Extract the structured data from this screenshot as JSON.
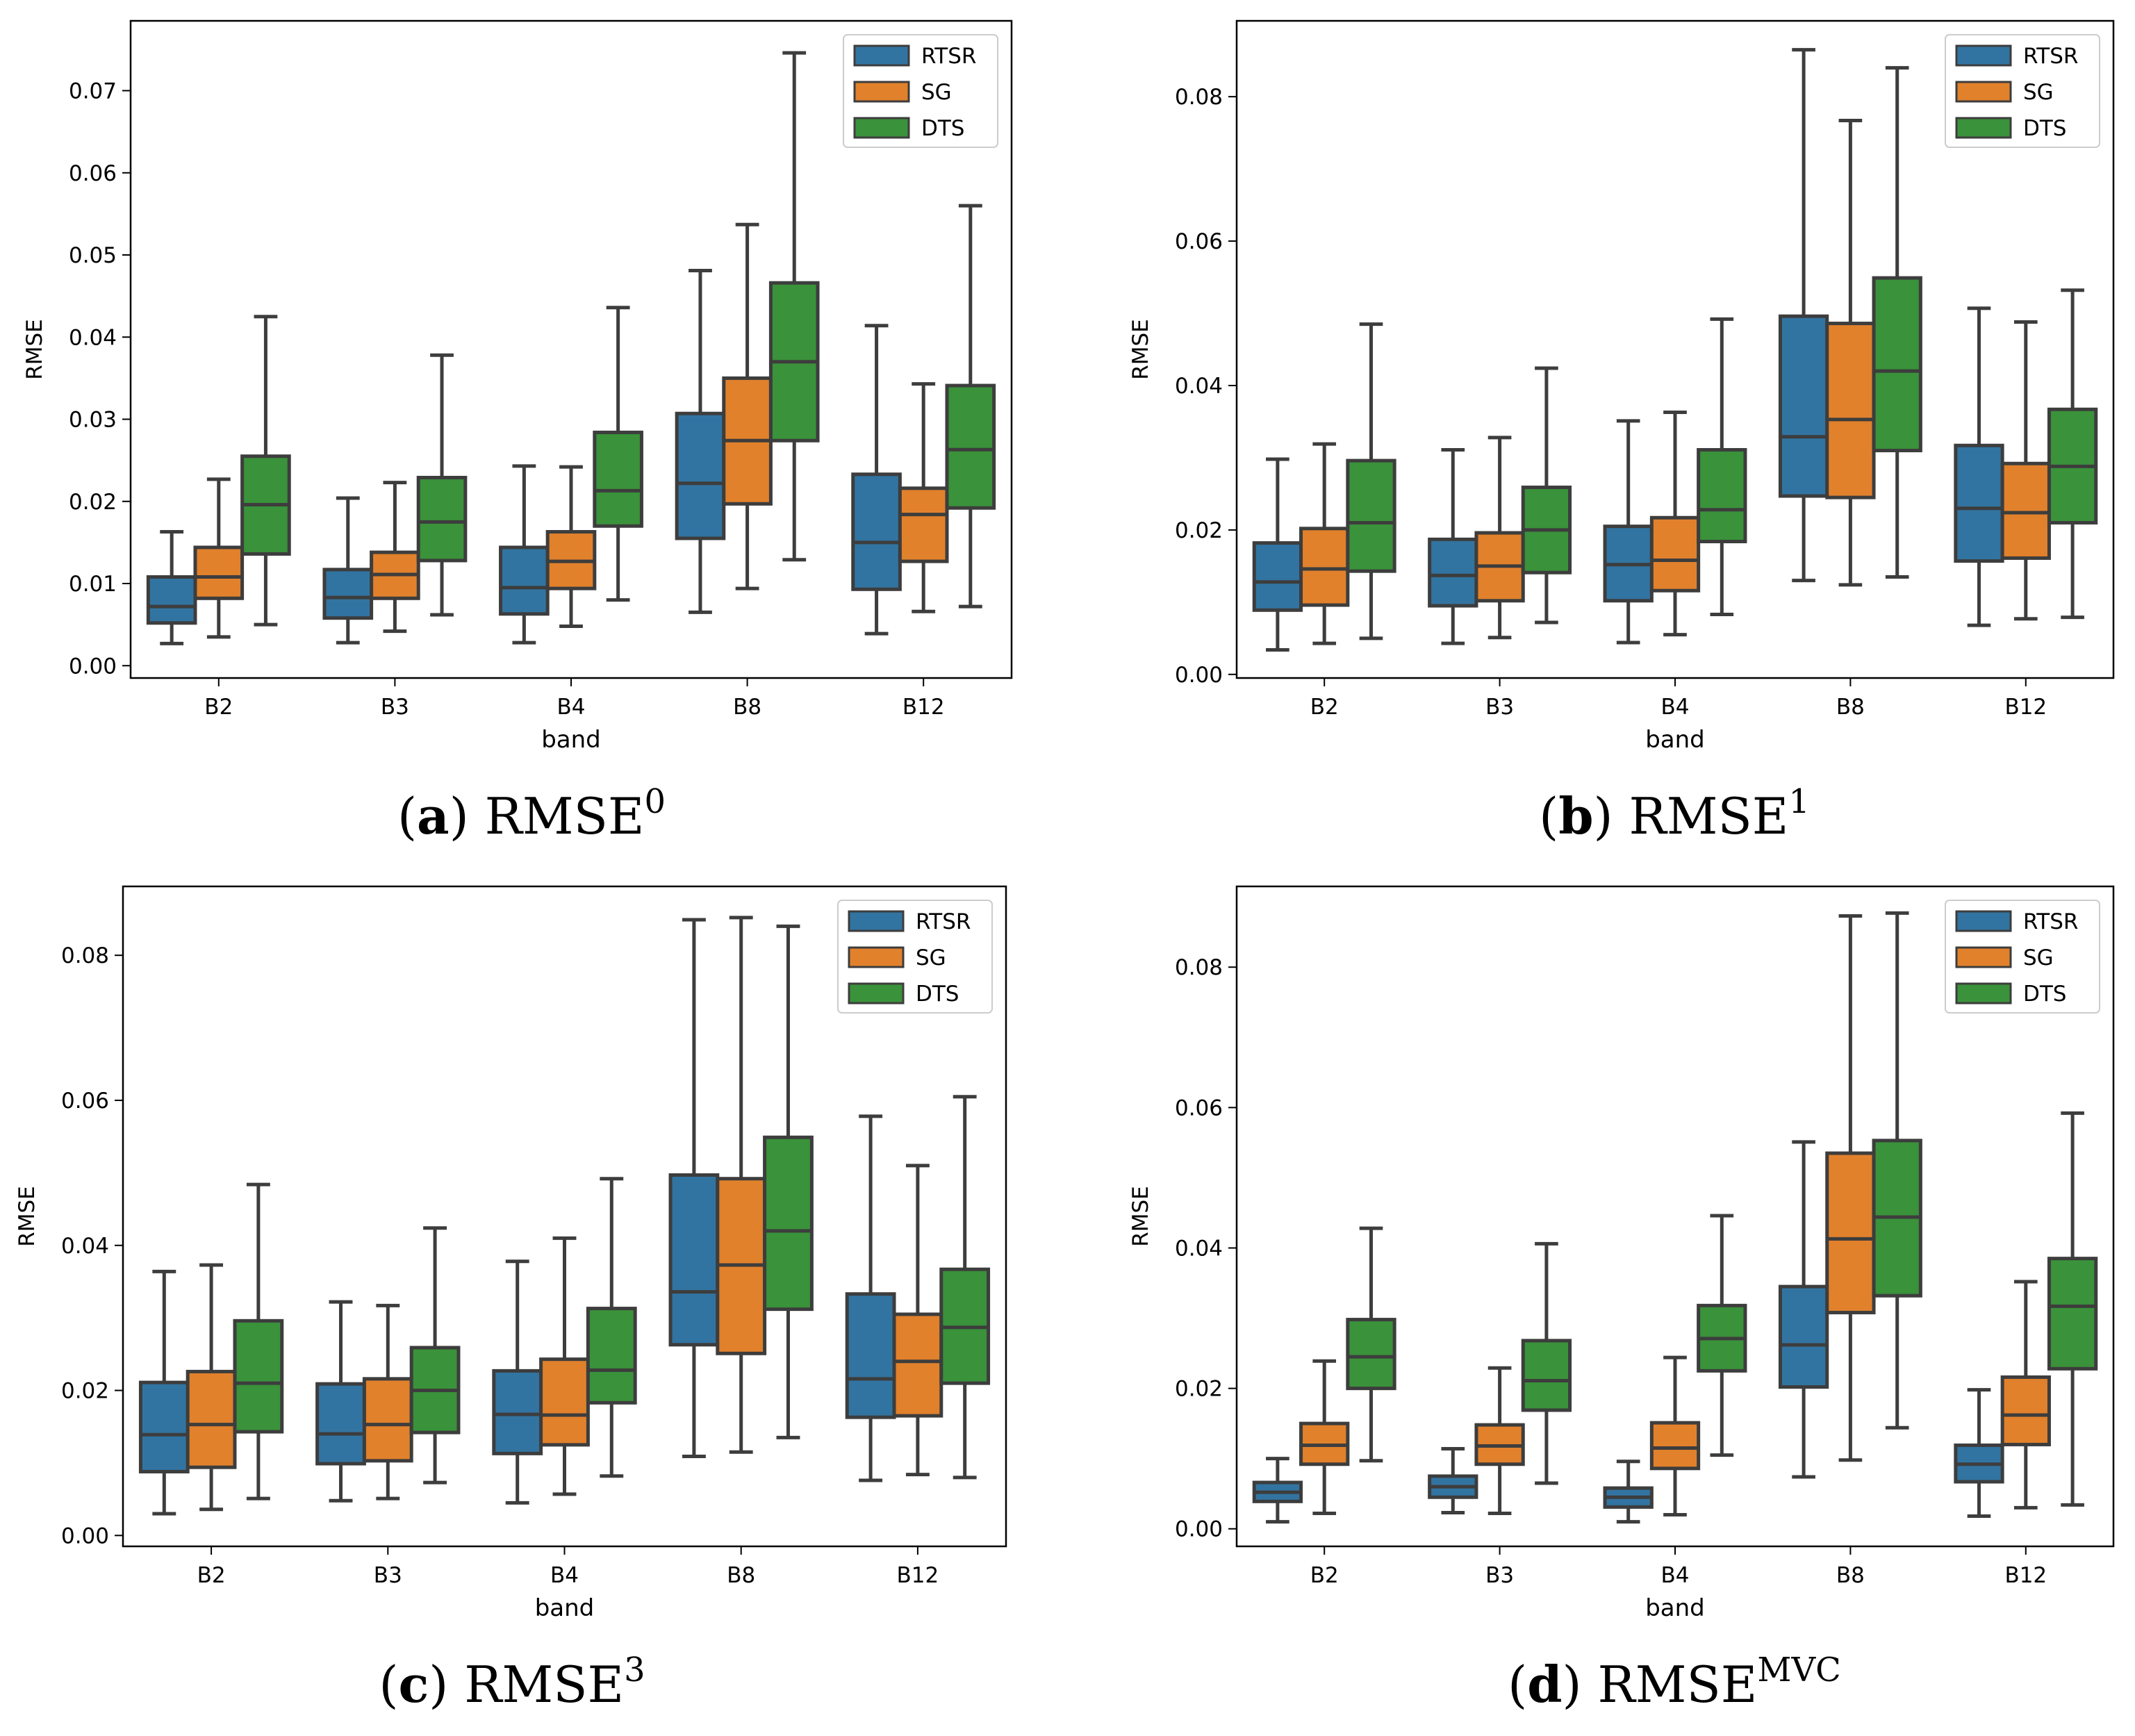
{
  "chart_data": [
    {
      "id": "a",
      "type": "box",
      "caption_letter": "a",
      "caption_base": "RMSE",
      "caption_sup": "0",
      "xlabel": "band",
      "ylabel": "RMSE",
      "ylim": [
        -0.0015,
        0.0785
      ],
      "yticks": [
        0.0,
        0.01,
        0.02,
        0.03,
        0.04,
        0.05,
        0.06,
        0.07
      ],
      "ytick_labels": [
        "0.00",
        "0.01",
        "0.02",
        "0.03",
        "0.04",
        "0.05",
        "0.06",
        "0.07"
      ],
      "categories": [
        "B2",
        "B3",
        "B4",
        "B8",
        "B12"
      ],
      "legend": [
        "RTSR",
        "SG",
        "DTS"
      ],
      "series": [
        {
          "name": "RTSR",
          "boxes": [
            {
              "wl": 0.0027,
              "q1": 0.0052,
              "med": 0.0072,
              "q3": 0.0108,
              "wh": 0.0163
            },
            {
              "wl": 0.0028,
              "q1": 0.0058,
              "med": 0.0083,
              "q3": 0.0117,
              "wh": 0.0204
            },
            {
              "wl": 0.0028,
              "q1": 0.0063,
              "med": 0.0095,
              "q3": 0.0144,
              "wh": 0.0243
            },
            {
              "wl": 0.0065,
              "q1": 0.0155,
              "med": 0.0222,
              "q3": 0.0307,
              "wh": 0.0481
            },
            {
              "wl": 0.0039,
              "q1": 0.0093,
              "med": 0.015,
              "q3": 0.0233,
              "wh": 0.0414
            }
          ]
        },
        {
          "name": "SG",
          "boxes": [
            {
              "wl": 0.0035,
              "q1": 0.0082,
              "med": 0.0108,
              "q3": 0.0144,
              "wh": 0.0227
            },
            {
              "wl": 0.0042,
              "q1": 0.0082,
              "med": 0.0111,
              "q3": 0.0138,
              "wh": 0.0223
            },
            {
              "wl": 0.0048,
              "q1": 0.0094,
              "med": 0.0127,
              "q3": 0.0163,
              "wh": 0.0242
            },
            {
              "wl": 0.0094,
              "q1": 0.0197,
              "med": 0.0274,
              "q3": 0.035,
              "wh": 0.0537
            },
            {
              "wl": 0.0066,
              "q1": 0.0127,
              "med": 0.0184,
              "q3": 0.0216,
              "wh": 0.0343
            }
          ]
        },
        {
          "name": "DTS",
          "boxes": [
            {
              "wl": 0.005,
              "q1": 0.0136,
              "med": 0.0196,
              "q3": 0.0255,
              "wh": 0.0425
            },
            {
              "wl": 0.0062,
              "q1": 0.0128,
              "med": 0.0175,
              "q3": 0.0229,
              "wh": 0.0378
            },
            {
              "wl": 0.008,
              "q1": 0.017,
              "med": 0.0213,
              "q3": 0.0284,
              "wh": 0.0436
            },
            {
              "wl": 0.0129,
              "q1": 0.0274,
              "med": 0.037,
              "q3": 0.0466,
              "wh": 0.0746
            },
            {
              "wl": 0.0072,
              "q1": 0.0192,
              "med": 0.0263,
              "q3": 0.0341,
              "wh": 0.056
            }
          ]
        }
      ]
    },
    {
      "id": "b",
      "type": "box",
      "caption_letter": "b",
      "caption_base": "RMSE",
      "caption_sup": "1",
      "xlabel": "band",
      "ylabel": "RMSE",
      "ylim": [
        -0.0005,
        0.0905
      ],
      "yticks": [
        0.0,
        0.02,
        0.04,
        0.06,
        0.08
      ],
      "ytick_labels": [
        "0.00",
        "0.02",
        "0.04",
        "0.06",
        "0.08"
      ],
      "categories": [
        "B2",
        "B3",
        "B4",
        "B8",
        "B12"
      ],
      "legend": [
        "RTSR",
        "SG",
        "DTS"
      ],
      "series": [
        {
          "name": "RTSR",
          "boxes": [
            {
              "wl": 0.0034,
              "q1": 0.0089,
              "med": 0.0128,
              "q3": 0.0182,
              "wh": 0.0298
            },
            {
              "wl": 0.0043,
              "q1": 0.0095,
              "med": 0.0137,
              "q3": 0.0187,
              "wh": 0.0311
            },
            {
              "wl": 0.0044,
              "q1": 0.0102,
              "med": 0.0152,
              "q3": 0.0205,
              "wh": 0.0351
            },
            {
              "wl": 0.013,
              "q1": 0.0247,
              "med": 0.0329,
              "q3": 0.0496,
              "wh": 0.0865
            },
            {
              "wl": 0.0068,
              "q1": 0.0157,
              "med": 0.023,
              "q3": 0.0317,
              "wh": 0.0507
            }
          ]
        },
        {
          "name": "SG",
          "boxes": [
            {
              "wl": 0.0043,
              "q1": 0.0096,
              "med": 0.0146,
              "q3": 0.0202,
              "wh": 0.0319
            },
            {
              "wl": 0.0051,
              "q1": 0.0102,
              "med": 0.015,
              "q3": 0.0196,
              "wh": 0.0328
            },
            {
              "wl": 0.0055,
              "q1": 0.0116,
              "med": 0.0158,
              "q3": 0.0217,
              "wh": 0.0363
            },
            {
              "wl": 0.0124,
              "q1": 0.0245,
              "med": 0.0353,
              "q3": 0.0486,
              "wh": 0.0767
            },
            {
              "wl": 0.0077,
              "q1": 0.0161,
              "med": 0.0224,
              "q3": 0.0292,
              "wh": 0.0488
            }
          ]
        },
        {
          "name": "DTS",
          "boxes": [
            {
              "wl": 0.005,
              "q1": 0.0143,
              "med": 0.021,
              "q3": 0.0296,
              "wh": 0.0485
            },
            {
              "wl": 0.0072,
              "q1": 0.0141,
              "med": 0.02,
              "q3": 0.0259,
              "wh": 0.0424
            },
            {
              "wl": 0.0083,
              "q1": 0.0184,
              "med": 0.0228,
              "q3": 0.0311,
              "wh": 0.0492
            },
            {
              "wl": 0.0135,
              "q1": 0.031,
              "med": 0.042,
              "q3": 0.0549,
              "wh": 0.084
            },
            {
              "wl": 0.0079,
              "q1": 0.021,
              "med": 0.0288,
              "q3": 0.0367,
              "wh": 0.0532
            }
          ]
        }
      ]
    },
    {
      "id": "c",
      "type": "box",
      "caption_letter": "c",
      "caption_base": "RMSE",
      "caption_sup": "3",
      "xlabel": "band",
      "ylabel": "RMSE",
      "ylim": [
        -0.0015,
        0.0895
      ],
      "yticks": [
        0.0,
        0.02,
        0.04,
        0.06,
        0.08
      ],
      "ytick_labels": [
        "0.00",
        "0.02",
        "0.04",
        "0.06",
        "0.08"
      ],
      "categories": [
        "B2",
        "B3",
        "B4",
        "B8",
        "B12"
      ],
      "legend": [
        "RTSR",
        "SG",
        "DTS"
      ],
      "series": [
        {
          "name": "RTSR",
          "boxes": [
            {
              "wl": 0.003,
              "q1": 0.0088,
              "med": 0.0139,
              "q3": 0.0211,
              "wh": 0.0364
            },
            {
              "wl": 0.0048,
              "q1": 0.0099,
              "med": 0.014,
              "q3": 0.0209,
              "wh": 0.0322
            },
            {
              "wl": 0.0045,
              "q1": 0.0113,
              "med": 0.0167,
              "q3": 0.0227,
              "wh": 0.0378
            },
            {
              "wl": 0.0109,
              "q1": 0.0263,
              "med": 0.0336,
              "q3": 0.0497,
              "wh": 0.0849
            },
            {
              "wl": 0.0076,
              "q1": 0.0163,
              "med": 0.0216,
              "q3": 0.0333,
              "wh": 0.0578
            }
          ]
        },
        {
          "name": "SG",
          "boxes": [
            {
              "wl": 0.0036,
              "q1": 0.0094,
              "med": 0.0153,
              "q3": 0.0226,
              "wh": 0.0373
            },
            {
              "wl": 0.0051,
              "q1": 0.0103,
              "med": 0.0153,
              "q3": 0.0216,
              "wh": 0.0317
            },
            {
              "wl": 0.0057,
              "q1": 0.0125,
              "med": 0.0166,
              "q3": 0.0243,
              "wh": 0.041
            },
            {
              "wl": 0.0115,
              "q1": 0.0251,
              "med": 0.0373,
              "q3": 0.0492,
              "wh": 0.0852
            },
            {
              "wl": 0.0084,
              "q1": 0.0165,
              "med": 0.024,
              "q3": 0.0305,
              "wh": 0.051
            }
          ]
        },
        {
          "name": "DTS",
          "boxes": [
            {
              "wl": 0.0051,
              "q1": 0.0143,
              "med": 0.021,
              "q3": 0.0296,
              "wh": 0.0484
            },
            {
              "wl": 0.0073,
              "q1": 0.0142,
              "med": 0.02,
              "q3": 0.0259,
              "wh": 0.0424
            },
            {
              "wl": 0.0082,
              "q1": 0.0183,
              "med": 0.0228,
              "q3": 0.0313,
              "wh": 0.0492
            },
            {
              "wl": 0.0135,
              "q1": 0.0312,
              "med": 0.042,
              "q3": 0.0549,
              "wh": 0.084
            },
            {
              "wl": 0.008,
              "q1": 0.021,
              "med": 0.0287,
              "q3": 0.0367,
              "wh": 0.0605
            }
          ]
        }
      ]
    },
    {
      "id": "d",
      "type": "box",
      "caption_letter": "d",
      "caption_base": "RMSE",
      "caption_sup": "MVC",
      "xlabel": "band",
      "ylabel": "RMSE",
      "ylim": [
        -0.0025,
        0.0915
      ],
      "yticks": [
        0.0,
        0.02,
        0.04,
        0.06,
        0.08
      ],
      "ytick_labels": [
        "0.00",
        "0.02",
        "0.04",
        "0.06",
        "0.08"
      ],
      "categories": [
        "B2",
        "B3",
        "B4",
        "B8",
        "B12"
      ],
      "legend": [
        "RTSR",
        "SG",
        "DTS"
      ],
      "series": [
        {
          "name": "RTSR",
          "boxes": [
            {
              "wl": 0.001,
              "q1": 0.0039,
              "med": 0.0052,
              "q3": 0.0066,
              "wh": 0.01
            },
            {
              "wl": 0.0023,
              "q1": 0.0045,
              "med": 0.006,
              "q3": 0.0075,
              "wh": 0.0114
            },
            {
              "wl": 0.001,
              "q1": 0.0031,
              "med": 0.0045,
              "q3": 0.0058,
              "wh": 0.0096
            },
            {
              "wl": 0.0074,
              "q1": 0.0202,
              "med": 0.0262,
              "q3": 0.0345,
              "wh": 0.0551
            },
            {
              "wl": 0.0018,
              "q1": 0.0067,
              "med": 0.0092,
              "q3": 0.0119,
              "wh": 0.0198
            }
          ]
        },
        {
          "name": "SG",
          "boxes": [
            {
              "wl": 0.0022,
              "q1": 0.0092,
              "med": 0.0119,
              "q3": 0.015,
              "wh": 0.0239
            },
            {
              "wl": 0.0022,
              "q1": 0.0092,
              "med": 0.0118,
              "q3": 0.0148,
              "wh": 0.0229
            },
            {
              "wl": 0.002,
              "q1": 0.0086,
              "med": 0.0115,
              "q3": 0.0151,
              "wh": 0.0244
            },
            {
              "wl": 0.0098,
              "q1": 0.0308,
              "med": 0.0413,
              "q3": 0.0535,
              "wh": 0.0873
            },
            {
              "wl": 0.003,
              "q1": 0.012,
              "med": 0.0162,
              "q3": 0.0216,
              "wh": 0.0352
            }
          ]
        },
        {
          "name": "DTS",
          "boxes": [
            {
              "wl": 0.0097,
              "q1": 0.02,
              "med": 0.0245,
              "q3": 0.0298,
              "wh": 0.0428
            },
            {
              "wl": 0.0065,
              "q1": 0.0169,
              "med": 0.0211,
              "q3": 0.0268,
              "wh": 0.0406
            },
            {
              "wl": 0.0105,
              "q1": 0.0225,
              "med": 0.0271,
              "q3": 0.0318,
              "wh": 0.0446
            },
            {
              "wl": 0.0144,
              "q1": 0.0332,
              "med": 0.0444,
              "q3": 0.0553,
              "wh": 0.0877
            },
            {
              "wl": 0.0034,
              "q1": 0.0228,
              "med": 0.0317,
              "q3": 0.0385,
              "wh": 0.0592
            }
          ]
        }
      ]
    }
  ],
  "colors": {
    "RTSR": "#3274a1",
    "SG": "#e1812c",
    "DTS": "#3a923a",
    "outline": "#3d3d3d"
  }
}
